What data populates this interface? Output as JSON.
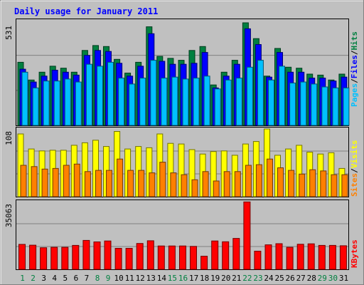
{
  "title": "Daily usage for January 2011",
  "colors": {
    "background": "#c0c0c0",
    "plot_bg": "#c0c0c0",
    "title": "#0000ff",
    "hits": "#008040",
    "files": "#0000ff",
    "pages": "#00c0ff",
    "visits": "#ffff00",
    "sites": "#ff8000",
    "kbytes": "#ff0000",
    "weekend_label": "#008040",
    "weekday_label": "#000000"
  },
  "chart_data": [
    {
      "type": "bar",
      "panel": "top",
      "ymax_label": "531",
      "right_label": [
        "Pages",
        "Files",
        "Hits"
      ],
      "categories": [
        "1",
        "2",
        "3",
        "4",
        "5",
        "6",
        "7",
        "8",
        "9",
        "10",
        "11",
        "12",
        "13",
        "14",
        "15",
        "16",
        "17",
        "18",
        "19",
        "20",
        "21",
        "22",
        "23",
        "24",
        "25",
        "26",
        "27",
        "28",
        "29",
        "30",
        "31"
      ],
      "weekend": [
        1,
        2,
        8,
        9,
        15,
        16,
        22,
        23,
        29,
        30
      ],
      "ymax": 531,
      "series": [
        {
          "name": "Hits",
          "values": [
            320,
            230,
            270,
            300,
            290,
            270,
            380,
            405,
            400,
            335,
            265,
            320,
            500,
            350,
            340,
            330,
            380,
            400,
            205,
            270,
            330,
            520,
            440,
            250,
            390,
            295,
            290,
            260,
            255,
            230,
            260
          ]
        },
        {
          "name": "Files",
          "values": [
            285,
            220,
            250,
            280,
            270,
            255,
            355,
            380,
            375,
            315,
            250,
            300,
            465,
            325,
            310,
            310,
            315,
            370,
            190,
            250,
            310,
            490,
            410,
            245,
            370,
            270,
            270,
            240,
            240,
            225,
            245
          ]
        },
        {
          "name": "Pages",
          "values": [
            270,
            190,
            225,
            225,
            235,
            220,
            310,
            300,
            320,
            240,
            210,
            240,
            330,
            240,
            245,
            235,
            240,
            250,
            185,
            230,
            240,
            295,
            330,
            230,
            300,
            215,
            220,
            210,
            195,
            190,
            190
          ]
        }
      ]
    },
    {
      "type": "bar",
      "panel": "middle",
      "ymax_label": "108",
      "right_label": [
        "Sites",
        "Visits"
      ],
      "categories": [
        "1",
        "2",
        "3",
        "4",
        "5",
        "6",
        "7",
        "8",
        "9",
        "10",
        "11",
        "12",
        "13",
        "14",
        "15",
        "16",
        "17",
        "18",
        "19",
        "20",
        "21",
        "22",
        "23",
        "24",
        "25",
        "26",
        "27",
        "28",
        "29",
        "30",
        "31"
      ],
      "weekend": [
        1,
        2,
        8,
        9,
        15,
        16,
        22,
        23,
        29,
        30
      ],
      "ymax": 108,
      "series": [
        {
          "name": "Visits",
          "values": [
            100,
            76,
            73,
            74,
            74,
            82,
            86,
            90,
            80,
            104,
            76,
            80,
            78,
            100,
            85,
            84,
            75,
            68,
            72,
            73,
            66,
            84,
            88,
            108,
            66,
            76,
            82,
            71,
            68,
            70,
            45
          ]
        },
        {
          "name": "Sites",
          "values": [
            50,
            48,
            44,
            45,
            50,
            52,
            40,
            42,
            42,
            60,
            42,
            42,
            38,
            55,
            38,
            35,
            27,
            40,
            25,
            40,
            40,
            50,
            51,
            60,
            46,
            42,
            36,
            43,
            41,
            35,
            35
          ]
        }
      ]
    },
    {
      "type": "bar",
      "panel": "bottom",
      "ymax_label": "35063",
      "right_label": [
        "KBytes"
      ],
      "categories": [
        "1",
        "2",
        "3",
        "4",
        "5",
        "6",
        "7",
        "8",
        "9",
        "10",
        "11",
        "12",
        "13",
        "14",
        "15",
        "16",
        "17",
        "18",
        "19",
        "20",
        "21",
        "22",
        "23",
        "24",
        "25",
        "26",
        "27",
        "28",
        "29",
        "30",
        "31"
      ],
      "weekend": [
        1,
        2,
        8,
        9,
        15,
        16,
        22,
        23,
        29,
        30
      ],
      "ymax": 35063,
      "series": [
        {
          "name": "KBytes",
          "values": [
            12900,
            12500,
            11200,
            11400,
            11400,
            12400,
            15000,
            14200,
            14700,
            10900,
            10900,
            13400,
            14800,
            12100,
            12100,
            12100,
            11900,
            6800,
            14700,
            14300,
            16000,
            34900,
            9400,
            12700,
            13300,
            11400,
            13000,
            13200,
            12400,
            12400,
            12200
          ]
        }
      ]
    }
  ]
}
